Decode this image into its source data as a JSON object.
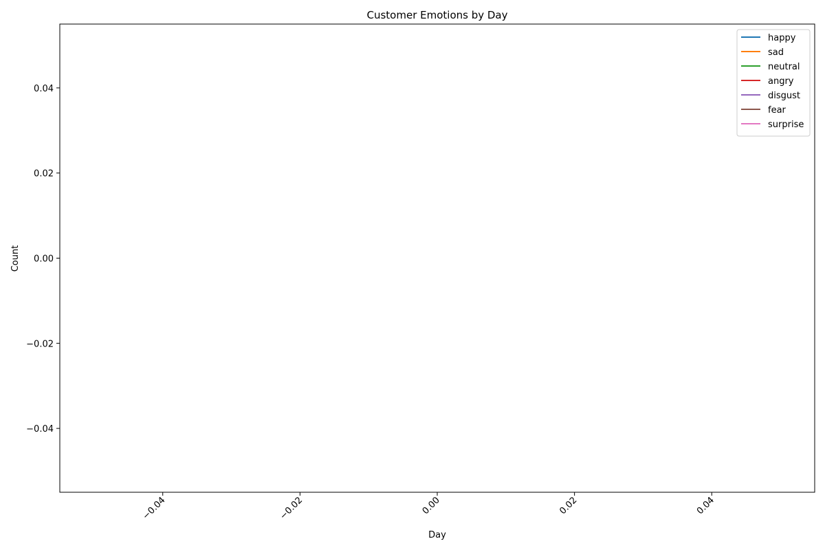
{
  "chart_data": {
    "type": "line",
    "title": "Customer Emotions by Day",
    "xlabel": "Day",
    "ylabel": "Count",
    "xlim": [
      -0.055,
      0.055
    ],
    "ylim": [
      -0.055,
      0.055
    ],
    "x_ticks": [
      -0.04,
      -0.02,
      0.0,
      0.02,
      0.04
    ],
    "x_tick_labels": [
      "−0.04",
      "−0.02",
      "0.00",
      "0.02",
      "0.04"
    ],
    "y_ticks": [
      -0.04,
      -0.02,
      0.0,
      0.02,
      0.04
    ],
    "y_tick_labels": [
      "−0.04",
      "−0.02",
      "0.00",
      "0.02",
      "0.04"
    ],
    "x_tick_rotation_deg": 45,
    "grid": false,
    "legend_position": "top-right",
    "series": [
      {
        "name": "happy",
        "color": "#1f77b4",
        "x": [],
        "y": []
      },
      {
        "name": "sad",
        "color": "#ff7f0e",
        "x": [],
        "y": []
      },
      {
        "name": "neutral",
        "color": "#2ca02c",
        "x": [],
        "y": []
      },
      {
        "name": "angry",
        "color": "#d62728",
        "x": [],
        "y": []
      },
      {
        "name": "disgust",
        "color": "#9467bd",
        "x": [],
        "y": []
      },
      {
        "name": "fear",
        "color": "#8c564b",
        "x": [],
        "y": []
      },
      {
        "name": "surprise",
        "color": "#e377c2",
        "x": [],
        "y": []
      }
    ]
  }
}
